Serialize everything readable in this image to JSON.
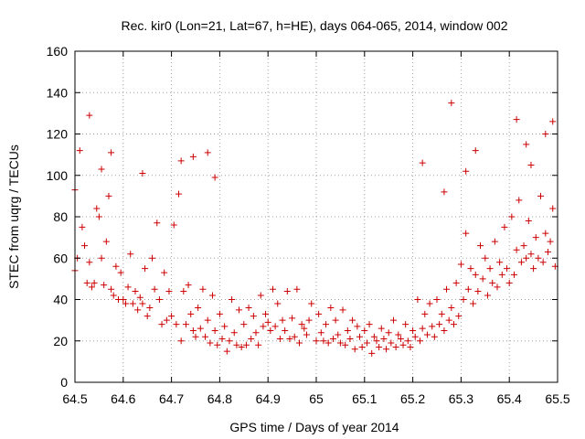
{
  "chart_data": {
    "type": "scatter",
    "title": "Rec. kir0 (Lon=21, Lat=67, h=HE), days 064-065, 2014, window 002",
    "xlabel": "GPS time / Days of year 2014",
    "ylabel": "STEC from uqrg / TECUs",
    "xlim": [
      64.5,
      65.5
    ],
    "ylim": [
      0,
      160
    ],
    "xticks": [
      "64.5",
      "64.6",
      "64.7",
      "64.8",
      "64.9",
      "65",
      "65.1",
      "65.2",
      "65.3",
      "65.4",
      "65.5"
    ],
    "yticks": [
      "0",
      "20",
      "40",
      "60",
      "80",
      "100",
      "120",
      "140",
      "160"
    ],
    "grid": true,
    "marker": "plus",
    "color": "#cc0000",
    "series": [
      {
        "x": [
          64.5,
          64.5,
          64.505,
          64.51,
          64.515,
          64.52,
          64.525,
          64.53,
          64.535,
          64.54,
          64.545,
          64.55,
          64.555,
          64.56,
          64.565,
          64.57,
          64.575,
          64.58,
          64.585,
          64.59,
          64.595,
          64.6,
          64.605,
          64.61,
          64.615,
          64.62,
          64.625,
          64.63,
          64.635,
          64.64,
          64.645,
          64.65,
          64.655,
          64.66,
          64.665,
          64.67,
          64.675,
          64.68,
          64.685,
          64.69,
          64.695,
          64.7,
          64.705,
          64.71,
          64.715,
          64.72,
          64.725,
          64.73,
          64.735,
          64.74,
          64.745,
          64.75,
          64.755,
          64.76,
          64.765,
          64.77,
          64.775,
          64.78,
          64.785,
          64.79,
          64.795,
          64.8,
          64.805,
          64.81,
          64.815,
          64.82,
          64.825,
          64.83,
          64.835,
          64.84,
          64.845,
          64.85,
          64.855,
          64.86,
          64.865,
          64.87,
          64.875,
          64.88,
          64.885,
          64.89,
          64.895,
          64.9,
          64.905,
          64.91,
          64.915,
          64.92,
          64.925,
          64.93,
          64.935,
          64.94,
          64.945,
          64.95,
          64.955,
          64.96,
          64.965,
          64.97,
          64.975,
          64.98,
          64.985,
          64.99,
          65.0,
          65.005,
          65.01,
          65.015,
          65.02,
          65.025,
          65.03,
          65.035,
          65.04,
          65.045,
          65.05,
          65.055,
          65.06,
          65.065,
          65.07,
          65.075,
          65.08,
          65.085,
          65.09,
          65.095,
          65.1,
          65.105,
          65.11,
          65.115,
          65.12,
          65.125,
          65.13,
          65.135,
          65.14,
          65.145,
          65.15,
          65.155,
          65.16,
          65.165,
          65.17,
          65.175,
          65.18,
          65.185,
          65.19,
          65.195,
          65.2,
          65.205,
          65.21,
          65.215,
          65.22,
          65.225,
          65.23,
          65.235,
          65.24,
          65.245,
          65.25,
          65.255,
          65.26,
          65.265,
          65.27,
          65.275,
          65.28,
          65.285,
          65.29,
          65.295,
          65.3,
          65.305,
          65.31,
          65.315,
          65.32,
          65.325,
          65.33,
          65.335,
          65.34,
          65.345,
          65.35,
          65.355,
          65.36,
          65.365,
          65.37,
          65.375,
          65.38,
          65.385,
          65.39,
          65.395,
          65.4,
          65.405,
          65.41,
          65.415,
          65.42,
          65.425,
          65.43,
          65.435,
          65.44,
          65.445,
          65.45,
          65.455,
          65.46,
          65.465,
          65.47,
          65.475,
          65.48,
          65.485,
          65.49,
          65.495,
          64.53,
          64.555,
          64.575,
          64.64,
          64.72,
          64.745,
          64.775,
          64.79,
          65.22,
          65.265,
          65.28,
          65.31,
          65.33,
          65.415,
          65.435,
          65.445,
          65.475,
          65.49
        ],
        "y": [
          54,
          93,
          60,
          112,
          75,
          66,
          48,
          58,
          46,
          48,
          84,
          80,
          60,
          47,
          68,
          90,
          45,
          42,
          56,
          40,
          53,
          40,
          38,
          46,
          62,
          38,
          44,
          35,
          41,
          38,
          55,
          32,
          36,
          60,
          45,
          77,
          40,
          28,
          53,
          30,
          44,
          32,
          76,
          28,
          91,
          20,
          44,
          28,
          47,
          33,
          25,
          22,
          36,
          26,
          45,
          22,
          30,
          19,
          42,
          25,
          18,
          33,
          21,
          27,
          15,
          20,
          40,
          24,
          18,
          35,
          17,
          28,
          18,
          36,
          21,
          32,
          24,
          18,
          42,
          27,
          33,
          29,
          25,
          45,
          27,
          38,
          21,
          30,
          25,
          44,
          21,
          31,
          22,
          45,
          19,
          28,
          26,
          23,
          30,
          38,
          20,
          33,
          24,
          20,
          28,
          19,
          36,
          21,
          30,
          23,
          19,
          35,
          18,
          25,
          21,
          30,
          16,
          27,
          22,
          17,
          25,
          19,
          28,
          14,
          22,
          20,
          17,
          26,
          21,
          16,
          24,
          19,
          30,
          17,
          23,
          21,
          18,
          28,
          20,
          17,
          25,
          22,
          40,
          20,
          26,
          33,
          23,
          38,
          27,
          22,
          40,
          28,
          33,
          25,
          45,
          30,
          36,
          28,
          48,
          32,
          57,
          40,
          72,
          45,
          55,
          38,
          52,
          44,
          66,
          50,
          60,
          42,
          55,
          48,
          68,
          46,
          58,
          52,
          75,
          55,
          48,
          80,
          52,
          64,
          88,
          58,
          66,
          60,
          78,
          62,
          55,
          70,
          60,
          90,
          58,
          72,
          63,
          68,
          84,
          56,
          129,
          103,
          111,
          101,
          107,
          109,
          111,
          99,
          106,
          92,
          135,
          102,
          112,
          127,
          115,
          105,
          120,
          126
        ]
      }
    ]
  }
}
